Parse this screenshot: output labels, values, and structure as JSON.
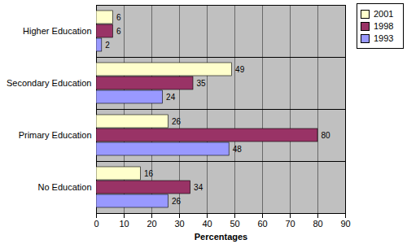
{
  "chart_data": {
    "type": "bar",
    "orientation": "horizontal",
    "categories": [
      "Higher Education",
      "Secondary Education",
      "Primary Education",
      "No Education"
    ],
    "series": [
      {
        "name": "2001",
        "color": "#ffffcc",
        "values": [
          6,
          49,
          26,
          16
        ]
      },
      {
        "name": "1998",
        "color": "#993366",
        "values": [
          6,
          35,
          80,
          34
        ]
      },
      {
        "name": "1993",
        "color": "#9999ff",
        "values": [
          2,
          24,
          48,
          26
        ]
      }
    ],
    "x_label": "Percentages",
    "xlim": [
      0,
      90
    ],
    "xticks": [
      0,
      10,
      20,
      30,
      40,
      50,
      60,
      70,
      80,
      90
    ],
    "grid": true,
    "data_labels": true,
    "legend": "top-right"
  }
}
